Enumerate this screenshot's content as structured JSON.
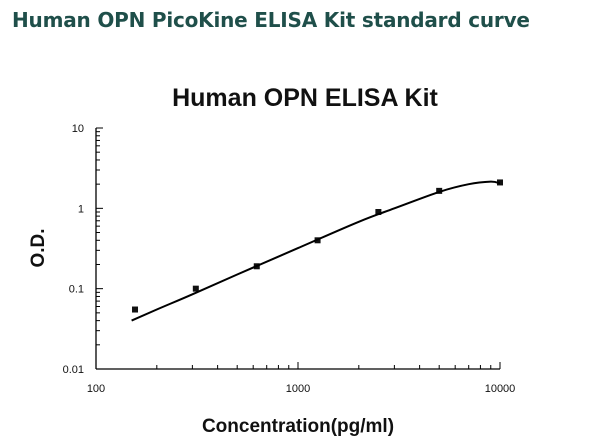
{
  "header": {
    "title": "Human OPN PicoKine ELISA Kit standard curve",
    "title_color": "#1f4f4a"
  },
  "chart_data": {
    "type": "scatter",
    "title": "Human OPN ELISA Kit",
    "xlabel": "Concentration(pg/ml)",
    "ylabel": "O.D.",
    "xscale": "log",
    "yscale": "log",
    "xlim": [
      100,
      10000
    ],
    "ylim": [
      0.01,
      10
    ],
    "xticks": [
      "100",
      "1000",
      "10000"
    ],
    "yticks": [
      "10",
      "1",
      "0.1",
      "0.01"
    ],
    "grid": false,
    "series": [
      {
        "type": "scatter",
        "x": [
          156,
          312,
          625,
          1250,
          2500,
          5000,
          10000
        ],
        "y": [
          0.055,
          0.1,
          0.19,
          0.4,
          0.9,
          1.65,
          2.1
        ]
      },
      {
        "type": "line",
        "x": [
          150,
          200,
          300,
          500,
          1000,
          2000,
          3000,
          5000,
          7000,
          9000,
          10000
        ],
        "y": [
          0.04,
          0.055,
          0.085,
          0.15,
          0.32,
          0.68,
          1.0,
          1.6,
          2.0,
          2.15,
          2.05
        ]
      }
    ]
  }
}
